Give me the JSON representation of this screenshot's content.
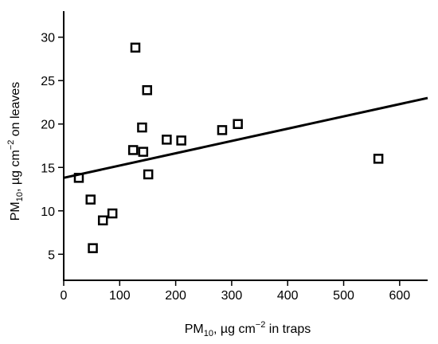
{
  "chart_data": {
    "type": "scatter",
    "title": "",
    "xlabel": {
      "base": "PM",
      "sub": "10",
      "mid": ", µg cm",
      "sup": "−2",
      "tail": " in traps"
    },
    "ylabel": {
      "base": "PM",
      "sub": "10",
      "mid": ", µg cm",
      "sup": "−2",
      "tail": " on leaves"
    },
    "xlim": [
      0,
      650
    ],
    "ylim": [
      2,
      33
    ],
    "x_ticks": [
      0,
      100,
      200,
      300,
      400,
      500,
      600
    ],
    "y_ticks": [
      5,
      10,
      15,
      20,
      25,
      30
    ],
    "grid": false,
    "marker": "open-square",
    "points": [
      {
        "x": 27,
        "y": 13.8
      },
      {
        "x": 48,
        "y": 11.3
      },
      {
        "x": 52,
        "y": 5.7
      },
      {
        "x": 70,
        "y": 8.9
      },
      {
        "x": 87,
        "y": 9.7
      },
      {
        "x": 124,
        "y": 17.0
      },
      {
        "x": 128,
        "y": 28.8
      },
      {
        "x": 140,
        "y": 19.6
      },
      {
        "x": 142,
        "y": 16.8
      },
      {
        "x": 149,
        "y": 23.9
      },
      {
        "x": 151,
        "y": 14.2
      },
      {
        "x": 184,
        "y": 18.2
      },
      {
        "x": 210,
        "y": 18.1
      },
      {
        "x": 283,
        "y": 19.3
      },
      {
        "x": 311,
        "y": 20.0
      },
      {
        "x": 562,
        "y": 16.0
      }
    ],
    "trendline": {
      "x": [
        0,
        650
      ],
      "y": [
        13.8,
        23.0
      ]
    }
  }
}
